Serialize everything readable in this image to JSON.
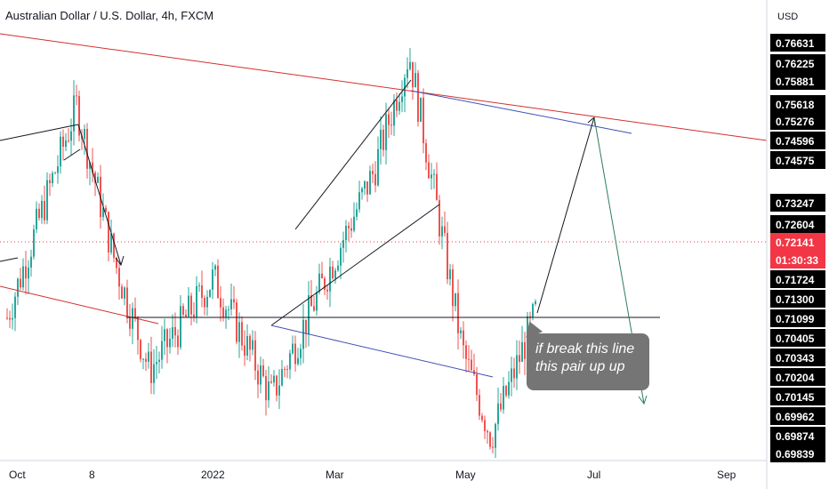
{
  "header": {
    "title": "Australian Dollar / U.S. Dollar, 4h, FXCM"
  },
  "price_axis": {
    "unit": "USD",
    "ticks": [
      "0.76631",
      "0.76225",
      "0.75881",
      "0.75618",
      "0.75276",
      "0.74596",
      "0.74575",
      "0.73247",
      "0.72604",
      "0.72141",
      "01:30:33",
      "0.71724",
      "0.71300",
      "0.71099",
      "0.70405",
      "0.70343",
      "0.70204",
      "0.70145",
      "0.69962",
      "0.69874",
      "0.69839"
    ],
    "current_price": "0.72141",
    "countdown": "01:30:33"
  },
  "time_axis": {
    "labels": [
      "Oct",
      "8",
      "2022",
      "Mar",
      "May",
      "Jul",
      "Sep"
    ]
  },
  "annotation": {
    "line1": "if break this line",
    "line2": "this pair up up"
  },
  "colors": {
    "price_highlight": "#f23645",
    "axis_label_bg": "#000000",
    "channel_red": "#d32f2f",
    "trend_blue": "#3f51b5",
    "projection_green": "#2e7d5b",
    "candle_up": "#26a69a",
    "candle_down": "#ef5350"
  },
  "chart_data": {
    "type": "candlestick",
    "title": "Australian Dollar / U.S. Dollar, 4h, FXCM",
    "xlabel": "",
    "ylabel": "USD",
    "x": [
      "Oct",
      "8",
      "2022",
      "Mar",
      "May",
      "Jul",
      "Sep"
    ],
    "ylim": [
      0.6984,
      0.768
    ],
    "approx_path": [
      {
        "x": "Oct",
        "y": 0.72
      },
      {
        "x": "8",
        "y": 0.752
      },
      {
        "x": "8",
        "y": 0.728
      },
      {
        "x": "2022",
        "y": 0.712
      },
      {
        "x": "2022",
        "y": 0.726
      },
      {
        "x": "Mar",
        "y": 0.708
      },
      {
        "x": "Mar",
        "y": 0.742
      },
      {
        "x": "Mar",
        "y": 0.76
      },
      {
        "x": "May",
        "y": 0.715
      },
      {
        "x": "May",
        "y": 0.702
      },
      {
        "x": "May",
        "y": 0.7214
      }
    ],
    "last_price": 0.72141,
    "support_level": 0.71099
  }
}
